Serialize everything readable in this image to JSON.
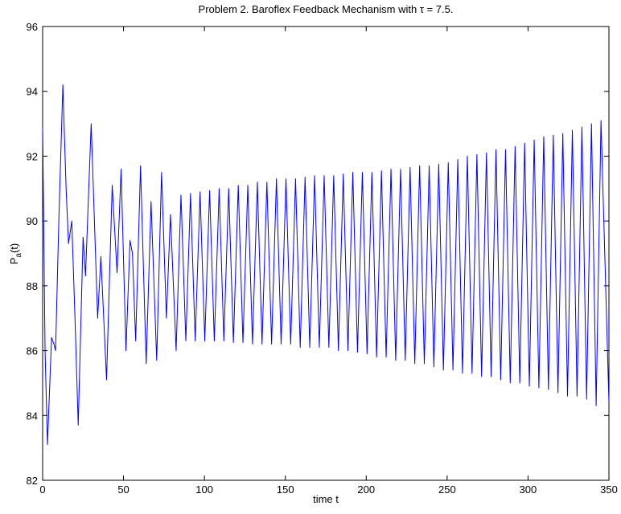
{
  "chart_data": {
    "type": "line",
    "title": "Problem 2. Baroflex Feedback Mechanism with τ = 7.5.",
    "xlabel": "time t",
    "ylabel": {
      "base": "P",
      "subscript": "a",
      "suffix": "(t)"
    },
    "x": [
      0,
      1.5,
      3,
      5.5,
      7,
      8,
      10,
      12.5,
      14.5,
      16,
      18,
      20,
      22,
      25,
      26.5,
      30,
      32,
      34,
      36,
      39.5,
      43,
      46,
      48.5,
      51.5,
      54,
      55.5,
      57.5,
      60.5,
      64,
      67,
      70.5,
      73.5,
      76.5,
      79,
      82.5,
      85.5,
      88.5,
      91.4,
      94.3,
      97.3,
      100.2,
      103.2,
      106.1,
      109.1,
      112.0,
      115.0,
      117.9,
      120.9,
      123.8,
      126.8,
      129.7,
      132.7,
      135.6,
      138.6,
      141.5,
      144.5,
      147.4,
      150.4,
      153.3,
      156.3,
      159.2,
      162.2,
      165.1,
      168.1,
      171.0,
      174.0,
      176.9,
      179.9,
      182.8,
      185.8,
      188.7,
      191.7,
      194.6,
      197.6,
      200.5,
      203.5,
      206.4,
      209.4,
      212.3,
      215.3,
      218.2,
      221.2,
      224.1,
      227.1,
      230.0,
      233.0,
      235.9,
      238.9,
      241.8,
      244.8,
      247.7,
      250.7,
      253.6,
      256.6,
      259.5,
      262.5,
      265.4,
      268.4,
      271.3,
      274.3,
      277.2,
      280.2,
      283.1,
      286.1,
      289.0,
      292.0,
      294.9,
      297.9,
      300.8,
      303.8,
      306.7,
      309.7,
      312.6,
      315.6,
      318.5,
      321.5,
      324.4,
      327.4,
      330.3,
      333.3,
      336.2,
      339.2,
      342.1,
      345.1,
      350
    ],
    "series": [
      {
        "color": "#0000ff",
        "values": [
          92.9,
          86,
          83.1,
          86.4,
          86.2,
          86.0,
          90,
          94.2,
          91,
          89.3,
          90.0,
          87,
          83.7,
          89.5,
          88.3,
          93.0,
          90,
          87.0,
          88.9,
          85.1,
          91.1,
          88.4,
          91.6,
          86.0,
          89.4,
          89.0,
          86.3,
          91.7,
          85.6,
          90.6,
          85.7,
          91.5,
          87.0,
          90.2,
          86.0,
          90.8,
          86.3,
          90.85,
          86.3,
          90.9,
          86.3,
          90.94,
          86.3,
          91.0,
          86.3,
          91.0,
          86.25,
          91.1,
          86.25,
          91.1,
          86.2,
          91.2,
          86.2,
          91.2,
          86.2,
          91.3,
          86.2,
          91.3,
          86.2,
          91.3,
          86.1,
          91.35,
          86.1,
          91.4,
          86.1,
          91.4,
          86.1,
          91.4,
          86.0,
          91.45,
          86.0,
          91.5,
          85.95,
          91.5,
          85.9,
          91.5,
          85.8,
          91.55,
          85.8,
          91.6,
          85.7,
          91.6,
          85.7,
          91.65,
          85.6,
          91.7,
          85.6,
          91.7,
          85.5,
          91.75,
          85.4,
          91.8,
          85.4,
          91.9,
          85.3,
          92.0,
          85.3,
          92.05,
          85.2,
          92.1,
          85.2,
          92.2,
          85.1,
          92.2,
          85.0,
          92.3,
          85.0,
          92.4,
          84.9,
          92.5,
          84.85,
          92.6,
          84.8,
          92.65,
          84.7,
          92.7,
          84.6,
          92.8,
          84.6,
          92.9,
          84.5,
          93.0,
          84.3,
          93.1,
          84.4
        ]
      }
    ],
    "xlim": [
      0,
      350
    ],
    "xticks": [
      0,
      50,
      100,
      150,
      200,
      250,
      300,
      350
    ],
    "ylim": [
      82,
      96
    ],
    "yticks": [
      82,
      84,
      86,
      88,
      90,
      92,
      94,
      96
    ],
    "grid": false
  }
}
